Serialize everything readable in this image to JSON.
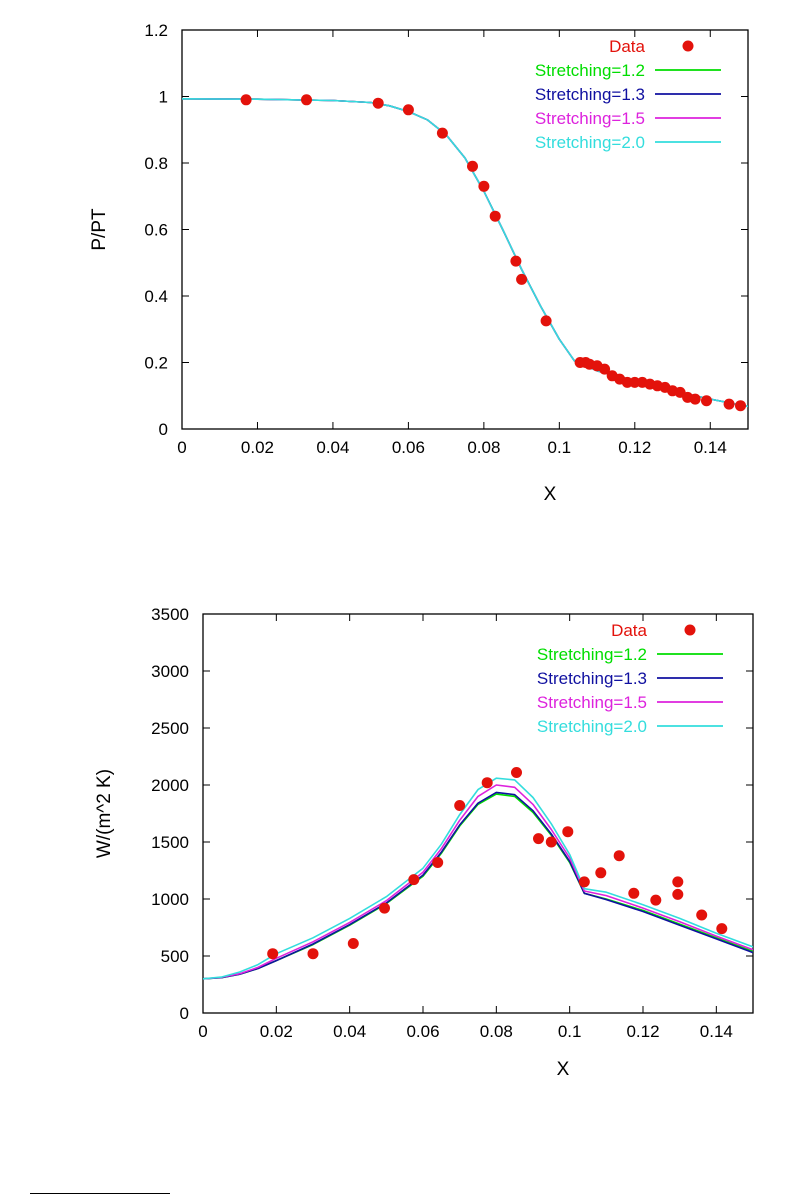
{
  "chart_data": [
    {
      "type": "line",
      "xlabel": "X",
      "ylabel": "P/PT",
      "xlim": [
        0,
        0.15
      ],
      "ylim": [
        0,
        1.2
      ],
      "xticks": [
        0,
        0.02,
        0.04,
        0.06,
        0.08,
        0.1,
        0.12,
        0.14
      ],
      "xtick_labels": [
        "0",
        "0.02",
        "0.04",
        "0.06",
        "0.08",
        "0.1",
        "0.12",
        "0.14"
      ],
      "yticks": [
        0,
        0.2,
        0.4,
        0.6,
        0.8,
        1.0,
        1.2
      ],
      "ytick_labels": [
        "0",
        "0.2",
        "0.4",
        "0.6",
        "0.8",
        "1",
        "1.2"
      ],
      "legend_position": "top-right",
      "scatter": {
        "name": "Data",
        "color": "#e3120b",
        "x": [
          0.017,
          0.033,
          0.052,
          0.06,
          0.069,
          0.077,
          0.08,
          0.083,
          0.0885,
          0.09,
          0.0965,
          0.1055,
          0.107,
          0.108,
          0.11,
          0.112,
          0.114,
          0.116,
          0.118,
          0.12,
          0.122,
          0.124,
          0.126,
          0.128,
          0.13,
          0.132,
          0.134,
          0.136,
          0.139,
          0.145,
          0.148
        ],
        "y": [
          0.99,
          0.99,
          0.98,
          0.96,
          0.89,
          0.79,
          0.73,
          0.64,
          0.505,
          0.45,
          0.325,
          0.2,
          0.2,
          0.195,
          0.19,
          0.18,
          0.16,
          0.15,
          0.14,
          0.14,
          0.14,
          0.135,
          0.13,
          0.125,
          0.115,
          0.11,
          0.095,
          0.09,
          0.085,
          0.075,
          0.07
        ]
      },
      "series": [
        {
          "name": "Stretching=1.2",
          "color": "#00dd00",
          "x": [
            0,
            0.02,
            0.04,
            0.05,
            0.055,
            0.06,
            0.065,
            0.07,
            0.075,
            0.08,
            0.085,
            0.09,
            0.095,
            0.1,
            0.104,
            0.11,
            0.12,
            0.13,
            0.14,
            0.15
          ],
          "y": [
            0.993,
            0.992,
            0.988,
            0.982,
            0.972,
            0.955,
            0.93,
            0.885,
            0.815,
            0.715,
            0.6,
            0.48,
            0.37,
            0.27,
            0.205,
            0.175,
            0.145,
            0.115,
            0.09,
            0.068
          ]
        },
        {
          "name": "Stretching=1.3",
          "color": "#1010a0",
          "x": [
            0,
            0.02,
            0.04,
            0.05,
            0.055,
            0.06,
            0.065,
            0.07,
            0.075,
            0.08,
            0.085,
            0.09,
            0.095,
            0.1,
            0.104,
            0.11,
            0.12,
            0.13,
            0.14,
            0.15
          ],
          "y": [
            0.993,
            0.992,
            0.988,
            0.982,
            0.972,
            0.955,
            0.93,
            0.885,
            0.815,
            0.715,
            0.6,
            0.48,
            0.37,
            0.27,
            0.205,
            0.175,
            0.145,
            0.115,
            0.09,
            0.068
          ]
        },
        {
          "name": "Stretching=1.5",
          "color": "#dd22dd",
          "x": [
            0,
            0.02,
            0.04,
            0.05,
            0.055,
            0.06,
            0.065,
            0.07,
            0.075,
            0.08,
            0.085,
            0.09,
            0.095,
            0.1,
            0.104,
            0.11,
            0.12,
            0.13,
            0.14,
            0.15
          ],
          "y": [
            0.993,
            0.992,
            0.988,
            0.982,
            0.972,
            0.955,
            0.93,
            0.885,
            0.815,
            0.715,
            0.6,
            0.48,
            0.37,
            0.27,
            0.205,
            0.175,
            0.145,
            0.115,
            0.09,
            0.068
          ]
        },
        {
          "name": "Stretching=2.0",
          "color": "#33dddd",
          "x": [
            0,
            0.02,
            0.04,
            0.05,
            0.055,
            0.06,
            0.065,
            0.07,
            0.075,
            0.08,
            0.085,
            0.09,
            0.095,
            0.1,
            0.104,
            0.11,
            0.12,
            0.13,
            0.14,
            0.15
          ],
          "y": [
            0.993,
            0.992,
            0.988,
            0.982,
            0.972,
            0.955,
            0.93,
            0.885,
            0.815,
            0.715,
            0.6,
            0.48,
            0.37,
            0.27,
            0.205,
            0.175,
            0.145,
            0.115,
            0.09,
            0.068
          ]
        }
      ]
    },
    {
      "type": "line",
      "xlabel": "X",
      "ylabel": "W/(m^2 K)",
      "xlim": [
        0,
        0.15
      ],
      "ylim": [
        0,
        3500
      ],
      "xticks": [
        0,
        0.02,
        0.04,
        0.06,
        0.08,
        0.1,
        0.12,
        0.14
      ],
      "xtick_labels": [
        "0",
        "0.02",
        "0.04",
        "0.06",
        "0.08",
        "0.1",
        "0.12",
        "0.14"
      ],
      "yticks": [
        0,
        500,
        1000,
        1500,
        2000,
        2500,
        3000,
        3500
      ],
      "ytick_labels": [
        "0",
        "500",
        "1000",
        "1500",
        "2000",
        "2500",
        "3000",
        "3500"
      ],
      "legend_position": "top-right",
      "scatter": {
        "name": "Data",
        "color": "#e3120b",
        "x": [
          0.019,
          0.03,
          0.041,
          0.0495,
          0.0575,
          0.064,
          0.07,
          0.0775,
          0.0855,
          0.0915,
          0.095,
          0.0995,
          0.104,
          0.1085,
          0.1135,
          0.1175,
          0.1235,
          0.1295,
          0.1295,
          0.136,
          0.1415
        ],
        "y": [
          520,
          520,
          610,
          920,
          1170,
          1320,
          1820,
          2020,
          2110,
          1530,
          1500,
          1590,
          1150,
          1230,
          1380,
          1050,
          990,
          1040,
          1150,
          860,
          740
        ]
      },
      "series": [
        {
          "name": "Stretching=1.2",
          "color": "#00dd00",
          "x": [
            0,
            0.005,
            0.01,
            0.015,
            0.02,
            0.03,
            0.04,
            0.05,
            0.06,
            0.065,
            0.07,
            0.075,
            0.08,
            0.085,
            0.09,
            0.095,
            0.1,
            0.104,
            0.11,
            0.12,
            0.13,
            0.14,
            0.15
          ],
          "y": [
            300,
            310,
            340,
            390,
            460,
            600,
            770,
            960,
            1200,
            1400,
            1640,
            1830,
            1920,
            1900,
            1760,
            1560,
            1320,
            1050,
            1000,
            900,
            780,
            660,
            540
          ]
        },
        {
          "name": "Stretching=1.3",
          "color": "#1010a0",
          "x": [
            0,
            0.005,
            0.01,
            0.015,
            0.02,
            0.03,
            0.04,
            0.05,
            0.06,
            0.065,
            0.07,
            0.075,
            0.08,
            0.085,
            0.09,
            0.095,
            0.1,
            0.104,
            0.11,
            0.12,
            0.13,
            0.14,
            0.15
          ],
          "y": [
            300,
            310,
            340,
            390,
            460,
            605,
            775,
            965,
            1210,
            1410,
            1650,
            1840,
            1935,
            1915,
            1775,
            1570,
            1330,
            1050,
            995,
            890,
            770,
            650,
            530
          ]
        },
        {
          "name": "Stretching=1.5",
          "color": "#dd22dd",
          "x": [
            0,
            0.005,
            0.01,
            0.015,
            0.02,
            0.03,
            0.04,
            0.05,
            0.06,
            0.065,
            0.07,
            0.075,
            0.08,
            0.085,
            0.09,
            0.095,
            0.1,
            0.104,
            0.11,
            0.12,
            0.13,
            0.14,
            0.15
          ],
          "y": [
            300,
            312,
            345,
            400,
            480,
            625,
            795,
            985,
            1235,
            1440,
            1690,
            1900,
            2000,
            1980,
            1830,
            1610,
            1360,
            1070,
            1030,
            920,
            800,
            675,
            555
          ]
        },
        {
          "name": "Stretching=2.0",
          "color": "#33dddd",
          "x": [
            0,
            0.005,
            0.01,
            0.015,
            0.02,
            0.03,
            0.04,
            0.05,
            0.06,
            0.065,
            0.07,
            0.075,
            0.08,
            0.085,
            0.09,
            0.095,
            0.1,
            0.104,
            0.11,
            0.12,
            0.13,
            0.14,
            0.15
          ],
          "y": [
            300,
            315,
            360,
            425,
            520,
            660,
            830,
            1020,
            1270,
            1480,
            1740,
            1960,
            2060,
            2045,
            1890,
            1660,
            1390,
            1090,
            1060,
            950,
            830,
            700,
            580
          ]
        }
      ]
    }
  ]
}
